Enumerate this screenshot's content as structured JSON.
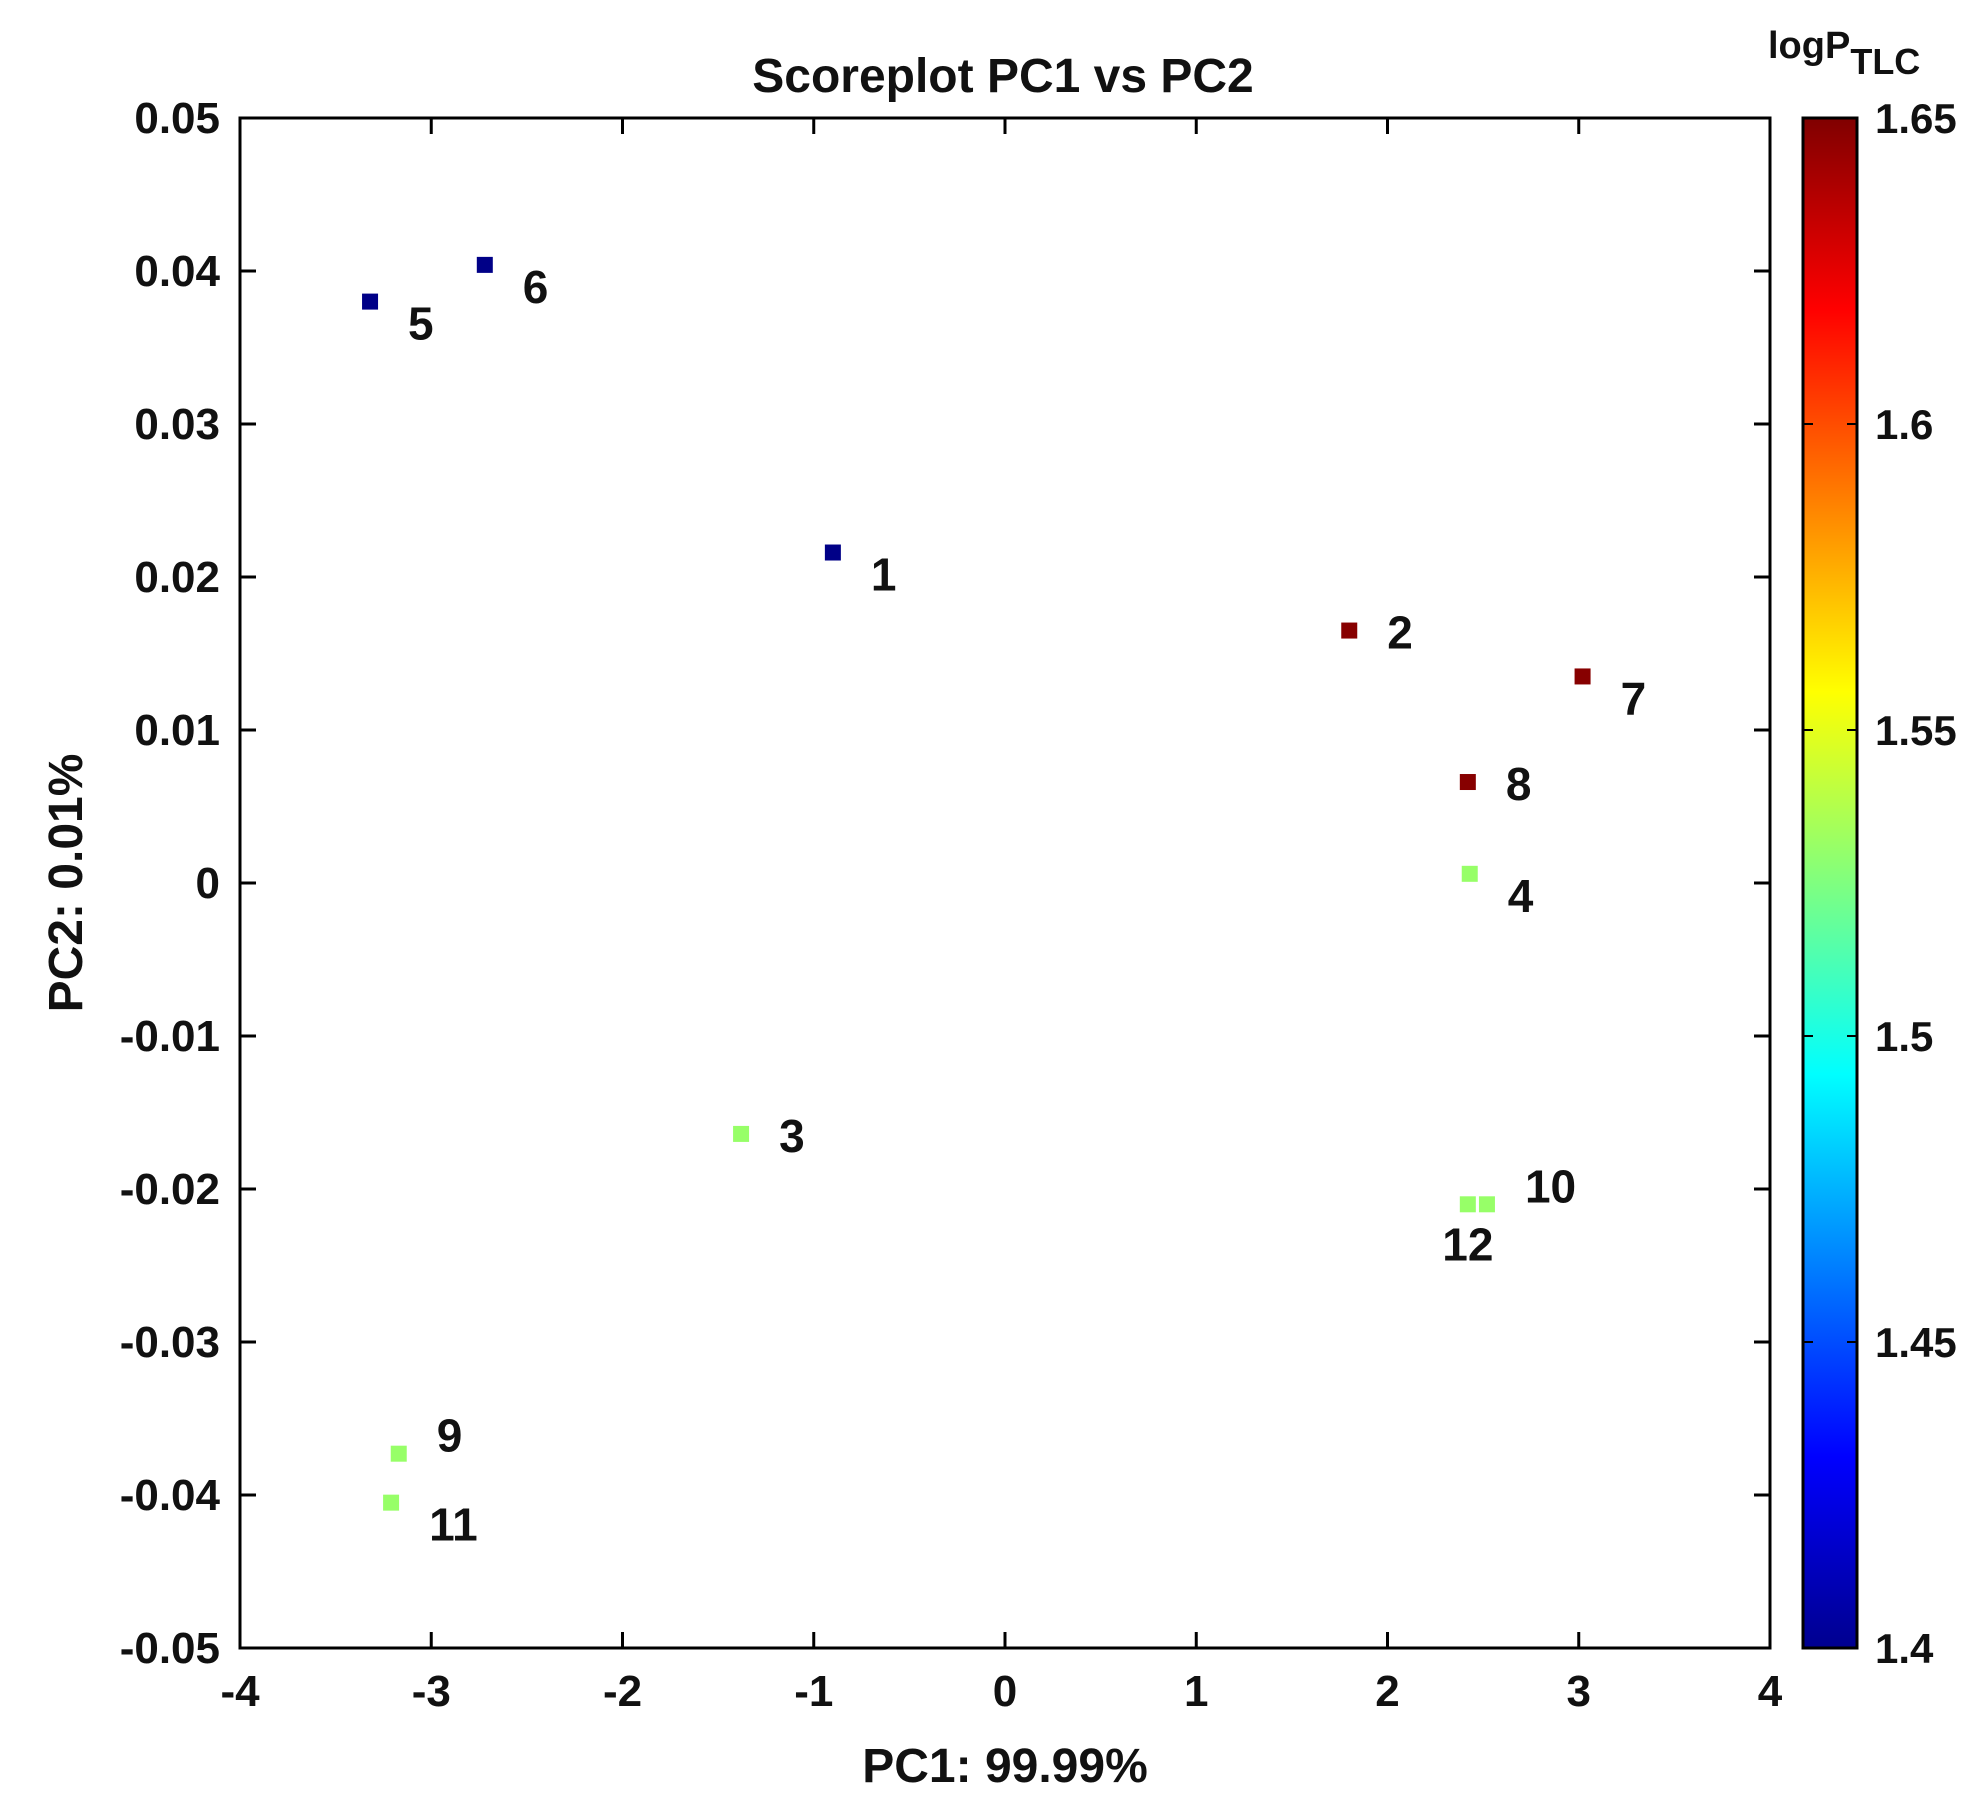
{
  "chart_data": {
    "type": "scatter",
    "title": "Scoreplot PC1 vs PC2",
    "xlabel": "PC1: 99.99%",
    "ylabel": "PC2: 0.01%",
    "xlim": [
      -4,
      4
    ],
    "ylim": [
      -0.05,
      0.05
    ],
    "xticks": [
      -4,
      -3,
      -2,
      -1,
      0,
      1,
      2,
      3,
      4
    ],
    "xtick_labels": [
      "-4",
      "-3",
      "-2",
      "-1",
      "0",
      "1",
      "2",
      "3",
      "4"
    ],
    "yticks": [
      -0.05,
      -0.04,
      -0.03,
      -0.02,
      -0.01,
      0,
      0.01,
      0.02,
      0.03,
      0.04,
      0.05
    ],
    "ytick_labels": [
      "-0.05",
      "-0.04",
      "-0.03",
      "-0.02",
      "-0.01",
      "0",
      "0.01",
      "0.02",
      "0.03",
      "0.04",
      "0.05"
    ],
    "grid": false,
    "colorbar": {
      "label_main": "logP",
      "label_sub": "TLC",
      "range": [
        1.4,
        1.65
      ],
      "ticks": [
        1.4,
        1.45,
        1.5,
        1.55,
        1.6,
        1.65
      ],
      "tick_labels": [
        "1.4",
        "1.45",
        "1.5",
        "1.55",
        "1.6",
        "1.65"
      ],
      "colormap": "jet"
    },
    "points": [
      {
        "label": "1",
        "x": -0.9,
        "y": 0.0216,
        "logP": 1.4,
        "label_pos": "below-right"
      },
      {
        "label": "2",
        "x": 1.8,
        "y": 0.0165,
        "logP": 1.65,
        "label_pos": "right"
      },
      {
        "label": "3",
        "x": -1.38,
        "y": -0.0164,
        "logP": 1.53,
        "label_pos": "right"
      },
      {
        "label": "4",
        "x": 2.43,
        "y": 0.0006,
        "logP": 1.53,
        "label_pos": "below-right"
      },
      {
        "label": "5",
        "x": -3.32,
        "y": 0.038,
        "logP": 1.4,
        "label_pos": "below-right"
      },
      {
        "label": "6",
        "x": -2.72,
        "y": 0.0404,
        "logP": 1.4,
        "label_pos": "below-right"
      },
      {
        "label": "7",
        "x": 3.02,
        "y": 0.0135,
        "logP": 1.65,
        "label_pos": "below-right"
      },
      {
        "label": "8",
        "x": 2.42,
        "y": 0.0066,
        "logP": 1.65,
        "label_pos": "right"
      },
      {
        "label": "9",
        "x": -3.17,
        "y": -0.0373,
        "logP": 1.53,
        "label_pos": "above-right"
      },
      {
        "label": "10",
        "x": 2.52,
        "y": -0.021,
        "logP": 1.53,
        "label_pos": "above-right"
      },
      {
        "label": "11",
        "x": -3.21,
        "y": -0.0405,
        "logP": 1.53,
        "label_pos": "below-right"
      },
      {
        "label": "12",
        "x": 2.42,
        "y": -0.021,
        "logP": 1.53,
        "label_pos": "below"
      }
    ]
  }
}
